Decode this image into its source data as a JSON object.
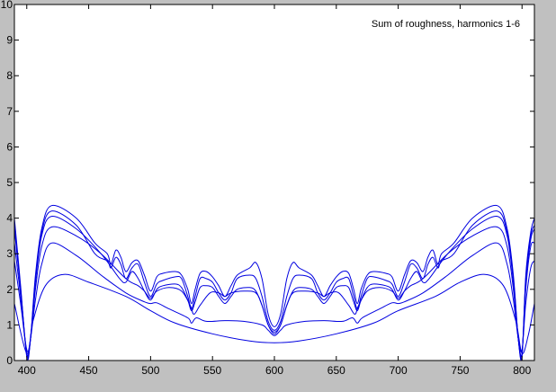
{
  "chart_data": {
    "type": "line",
    "title": "",
    "xlabel": "",
    "ylabel": "",
    "xlim": [
      390,
      810
    ],
    "ylim": [
      0,
      10
    ],
    "x_ticks": [
      400,
      450,
      500,
      550,
      600,
      650,
      700,
      750,
      800
    ],
    "y_ticks": [
      0,
      1,
      2,
      3,
      4,
      5,
      6,
      7,
      8,
      9,
      10
    ],
    "grid": false,
    "annotation": "Sum of roughness, harmonics 1-6",
    "colors": {
      "line": "#0000e0",
      "axes_background": "#ffffff",
      "figure_background": "#c0c0c0"
    },
    "series": [
      {
        "x": [
          390,
          400,
          405,
          415,
          430,
          450,
          480,
          500,
          520,
          550,
          580,
          600,
          620,
          650,
          680,
          700,
          730,
          750,
          770,
          785,
          795,
          800,
          805,
          810
        ],
        "y": [
          1.6,
          0.2,
          1.1,
          2.1,
          2.42,
          2.2,
          1.8,
          1.4,
          1.05,
          0.75,
          0.55,
          0.5,
          0.55,
          0.75,
          1.05,
          1.4,
          1.8,
          2.2,
          2.42,
          2.1,
          1.1,
          0.2,
          0.7,
          1.6
        ]
      },
      {
        "x": [
          390,
          395,
          400,
          403,
          407,
          412,
          420,
          440,
          460,
          480,
          495,
          500,
          505,
          515,
          530,
          533,
          537,
          545,
          560,
          575,
          590,
          595,
          600,
          605,
          610,
          625,
          640,
          655,
          663,
          667,
          671,
          685,
          695,
          700,
          705,
          720,
          740,
          760,
          780,
          788,
          793,
          797,
          800,
          803,
          807,
          810
        ],
        "y": [
          2.8,
          1.6,
          0.3,
          0.6,
          1.7,
          2.7,
          3.3,
          2.95,
          2.4,
          1.9,
          1.65,
          1.6,
          1.62,
          1.45,
          1.2,
          1.05,
          1.2,
          1.1,
          1.12,
          1.1,
          1.0,
          0.85,
          0.7,
          0.85,
          1.0,
          1.1,
          1.12,
          1.1,
          1.2,
          1.05,
          1.2,
          1.45,
          1.62,
          1.6,
          1.65,
          1.9,
          2.4,
          2.95,
          3.3,
          2.7,
          1.7,
          0.6,
          0.3,
          1.6,
          2.6,
          2.8
        ]
      },
      {
        "x": [
          390,
          395,
          400,
          403,
          407,
          412,
          420,
          440,
          460,
          480,
          490,
          495,
          500,
          505,
          515,
          525,
          532,
          535,
          540,
          548,
          555,
          560,
          565,
          575,
          585,
          590,
          595,
          600,
          605,
          610,
          615,
          625,
          635,
          640,
          645,
          652,
          660,
          665,
          668,
          675,
          685,
          695,
          700,
          705,
          710,
          720,
          740,
          760,
          780,
          788,
          793,
          797,
          800,
          803,
          807,
          810
        ],
        "y": [
          3.3,
          1.8,
          0.2,
          0.6,
          2.0,
          3.2,
          3.75,
          3.5,
          3.0,
          2.3,
          2.1,
          1.95,
          1.75,
          1.95,
          2.05,
          1.95,
          1.55,
          1.3,
          1.55,
          1.9,
          1.9,
          1.8,
          1.9,
          1.95,
          1.9,
          1.55,
          1.0,
          0.75,
          1.0,
          1.55,
          1.9,
          1.95,
          1.9,
          1.8,
          1.9,
          1.9,
          1.55,
          1.3,
          1.55,
          1.95,
          2.05,
          1.95,
          1.75,
          1.95,
          2.1,
          2.3,
          3.0,
          3.5,
          3.75,
          3.2,
          2.0,
          0.6,
          0.2,
          2.0,
          3.2,
          3.3
        ]
      },
      {
        "x": [
          390,
          395,
          400,
          403,
          407,
          412,
          420,
          440,
          460,
          475,
          480,
          485,
          490,
          495,
          500,
          505,
          510,
          520,
          525,
          530,
          533,
          536,
          540,
          545,
          550,
          555,
          560,
          565,
          570,
          580,
          585,
          590,
          595,
          600,
          605,
          610,
          615,
          620,
          630,
          635,
          640,
          645,
          650,
          655,
          660,
          664,
          667,
          670,
          675,
          680,
          690,
          695,
          700,
          705,
          710,
          715,
          720,
          725,
          740,
          760,
          780,
          788,
          793,
          797,
          800,
          803,
          807,
          810
        ],
        "y": [
          3.7,
          2.0,
          0.2,
          0.6,
          2.2,
          3.5,
          4.05,
          3.7,
          3.0,
          2.3,
          2.2,
          2.5,
          2.3,
          1.95,
          1.7,
          2.0,
          2.1,
          2.15,
          2.05,
          1.7,
          1.4,
          1.65,
          2.05,
          2.1,
          2.05,
          1.8,
          1.6,
          1.8,
          2.0,
          2.05,
          1.95,
          1.55,
          1.0,
          0.8,
          1.0,
          1.55,
          1.95,
          2.05,
          2.0,
          1.8,
          1.6,
          1.8,
          2.05,
          2.1,
          2.05,
          1.65,
          1.4,
          1.7,
          2.05,
          2.15,
          2.1,
          2.0,
          1.7,
          1.95,
          2.3,
          2.5,
          2.2,
          2.3,
          3.0,
          3.7,
          4.05,
          3.5,
          2.2,
          0.6,
          0.2,
          2.2,
          3.4,
          3.7
        ]
      },
      {
        "x": [
          390,
          395,
          400,
          403,
          407,
          412,
          420,
          440,
          455,
          465,
          468,
          472,
          476,
          480,
          485,
          490,
          495,
          500,
          505,
          510,
          520,
          525,
          530,
          533,
          536,
          540,
          545,
          550,
          555,
          560,
          565,
          570,
          580,
          585,
          590,
          595,
          600,
          605,
          610,
          615,
          620,
          630,
          635,
          640,
          645,
          650,
          655,
          660,
          664,
          667,
          670,
          675,
          680,
          690,
          695,
          700,
          705,
          710,
          715,
          720,
          724,
          728,
          732,
          735,
          745,
          760,
          780,
          788,
          793,
          797,
          800,
          803,
          807,
          810
        ],
        "y": [
          3.8,
          2.0,
          0.15,
          0.6,
          2.3,
          3.6,
          4.2,
          3.8,
          3.0,
          2.8,
          2.6,
          2.9,
          2.7,
          2.3,
          2.6,
          2.7,
          2.2,
          1.8,
          2.15,
          2.25,
          2.35,
          2.3,
          1.8,
          1.45,
          1.8,
          2.3,
          2.3,
          2.2,
          1.9,
          1.7,
          1.9,
          2.3,
          2.4,
          2.3,
          1.8,
          1.1,
          0.85,
          1.1,
          1.8,
          2.3,
          2.4,
          2.3,
          1.9,
          1.7,
          1.9,
          2.2,
          2.3,
          2.3,
          1.8,
          1.45,
          1.8,
          2.3,
          2.35,
          2.25,
          2.15,
          1.8,
          2.2,
          2.7,
          2.6,
          2.3,
          2.7,
          2.9,
          2.6,
          2.8,
          3.0,
          3.8,
          4.2,
          3.6,
          2.3,
          0.6,
          0.15,
          2.3,
          3.5,
          3.8
        ]
      },
      {
        "x": [
          390,
          395,
          400,
          403,
          407,
          412,
          420,
          440,
          455,
          465,
          468,
          472,
          476,
          480,
          485,
          490,
          495,
          500,
          505,
          510,
          520,
          525,
          530,
          533,
          536,
          540,
          545,
          550,
          555,
          560,
          565,
          570,
          580,
          585,
          590,
          595,
          600,
          605,
          610,
          615,
          620,
          630,
          635,
          640,
          645,
          650,
          655,
          660,
          664,
          667,
          670,
          675,
          680,
          690,
          695,
          700,
          705,
          710,
          715,
          720,
          724,
          728,
          732,
          735,
          745,
          760,
          780,
          788,
          793,
          797,
          800,
          803,
          807,
          810
        ],
        "y": [
          4.0,
          2.1,
          0.1,
          0.6,
          2.4,
          3.7,
          4.35,
          4.0,
          3.3,
          3.0,
          2.7,
          3.1,
          2.9,
          2.5,
          2.75,
          2.8,
          2.4,
          1.95,
          2.35,
          2.45,
          2.5,
          2.4,
          2.0,
          1.6,
          2.0,
          2.45,
          2.5,
          2.35,
          2.1,
          1.8,
          2.1,
          2.4,
          2.6,
          2.75,
          2.3,
          1.3,
          0.95,
          1.3,
          2.3,
          2.75,
          2.6,
          2.4,
          2.1,
          1.8,
          2.1,
          2.35,
          2.5,
          2.45,
          2.0,
          1.6,
          2.0,
          2.4,
          2.5,
          2.45,
          2.35,
          1.95,
          2.4,
          2.8,
          2.75,
          2.5,
          2.9,
          3.1,
          2.7,
          3.0,
          3.3,
          4.0,
          4.35,
          3.7,
          2.4,
          0.6,
          0.1,
          2.4,
          3.6,
          4.0
        ]
      }
    ]
  }
}
